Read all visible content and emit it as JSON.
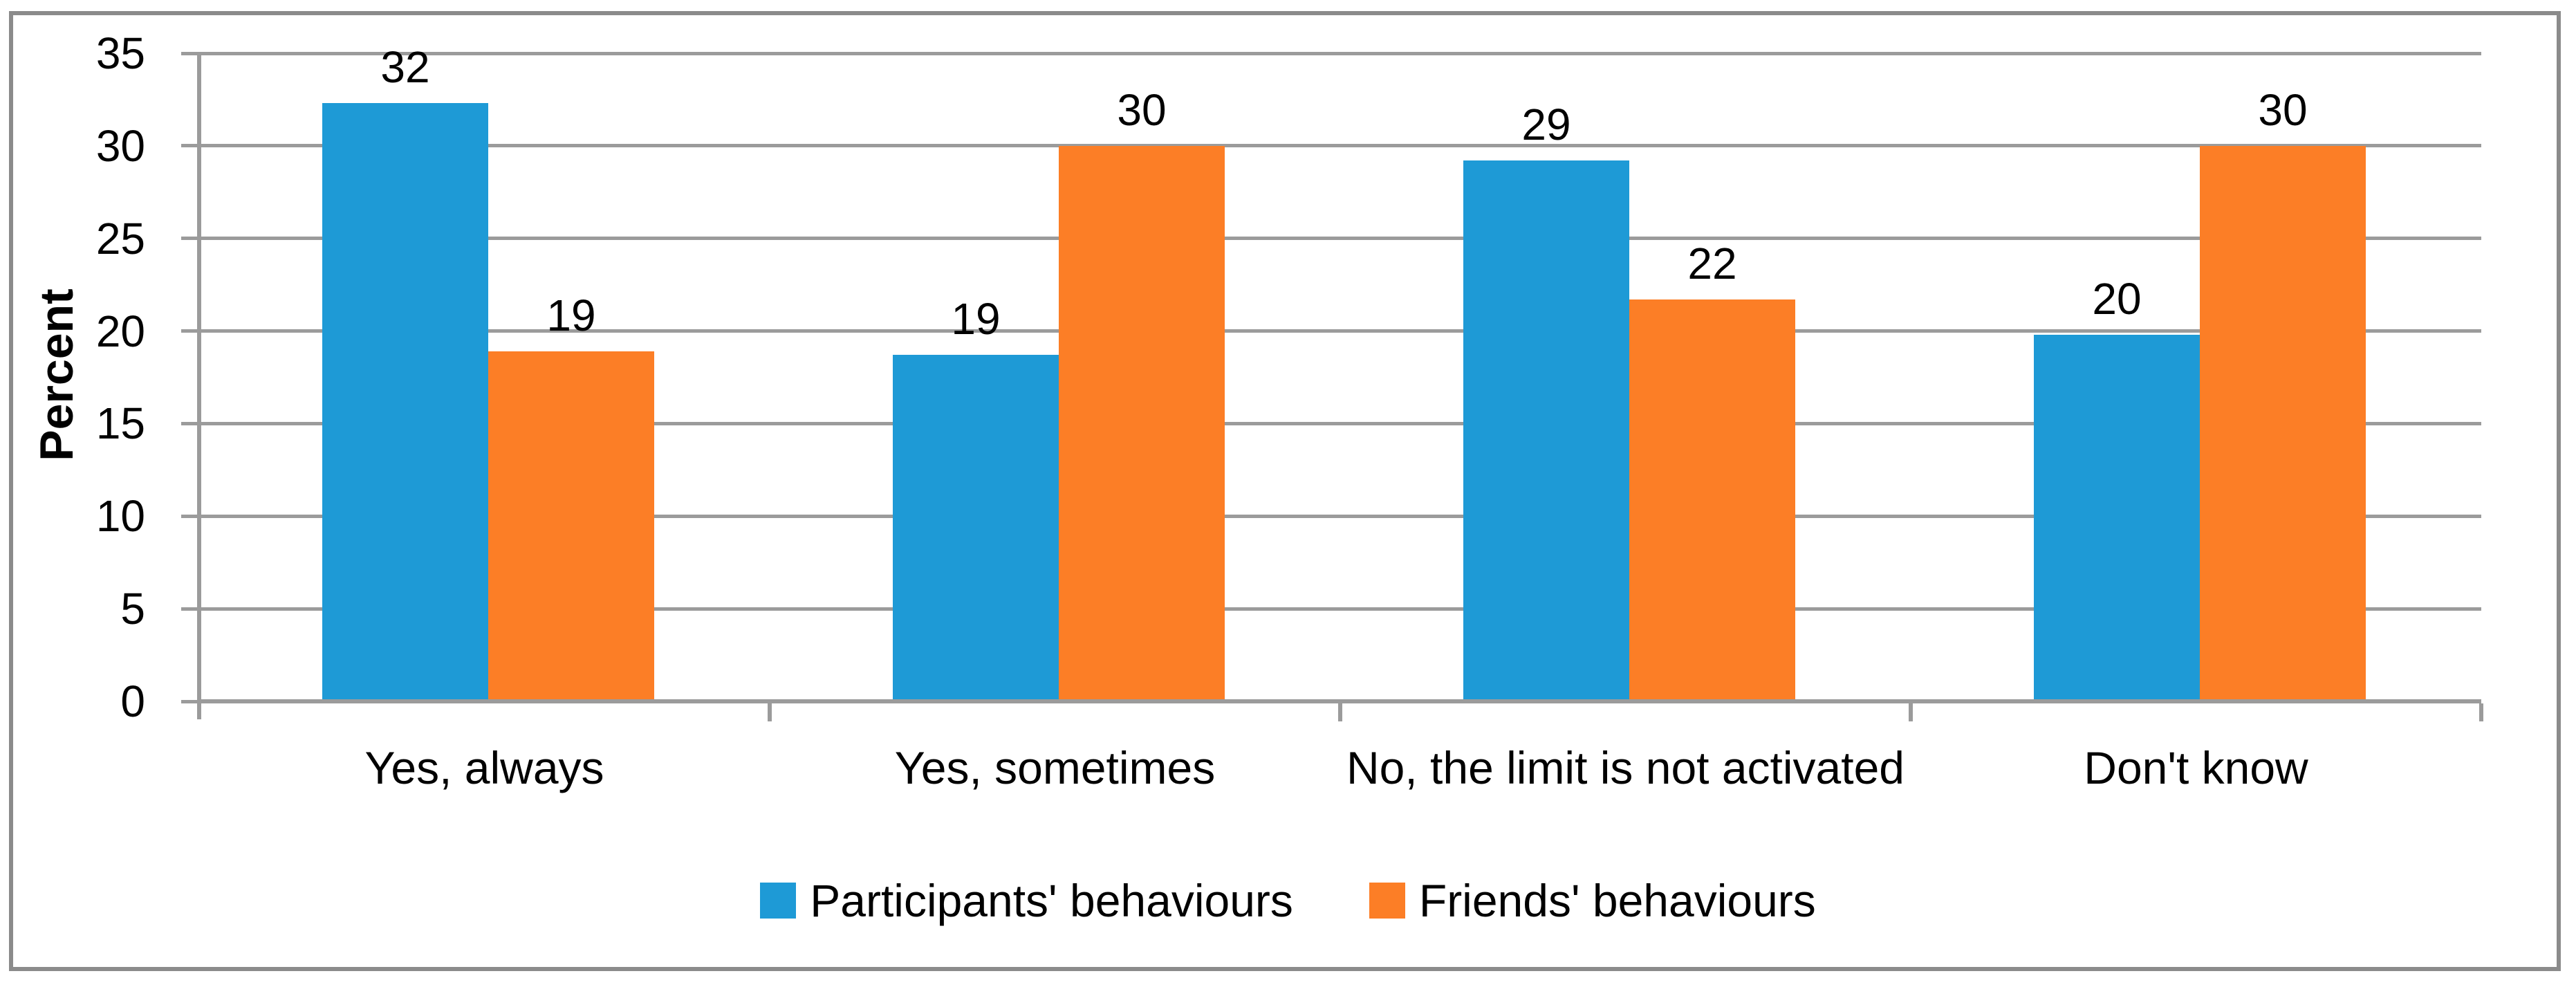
{
  "chart_data": {
    "type": "bar",
    "title": "",
    "xlabel": "",
    "ylabel": "Percent",
    "ylim": [
      0,
      35
    ],
    "yticks": [
      0,
      5,
      10,
      15,
      20,
      25,
      30,
      35
    ],
    "grid": true,
    "legend_position": "bottom-center",
    "data_labels": true,
    "categories": [
      "Yes, always",
      "Yes, sometimes",
      "No, the limit is not activated",
      "Don't know"
    ],
    "series": [
      {
        "name": "Participants' behaviours",
        "color": "#1E9AD6",
        "values": [
          32,
          19,
          29,
          20
        ],
        "drawn_heights": [
          32.3,
          18.7,
          29.2,
          19.8
        ]
      },
      {
        "name": "Friends' behaviours",
        "color": "#FC7E26",
        "values": [
          19,
          30,
          22,
          30
        ],
        "drawn_heights": [
          18.9,
          30,
          21.7,
          30
        ]
      }
    ]
  },
  "colors": {
    "gridline": "#9B9B9B",
    "axis": "#9B9B9B",
    "frame": "#8B8B8B",
    "text": "#000000",
    "background": "#FFFFFF"
  }
}
